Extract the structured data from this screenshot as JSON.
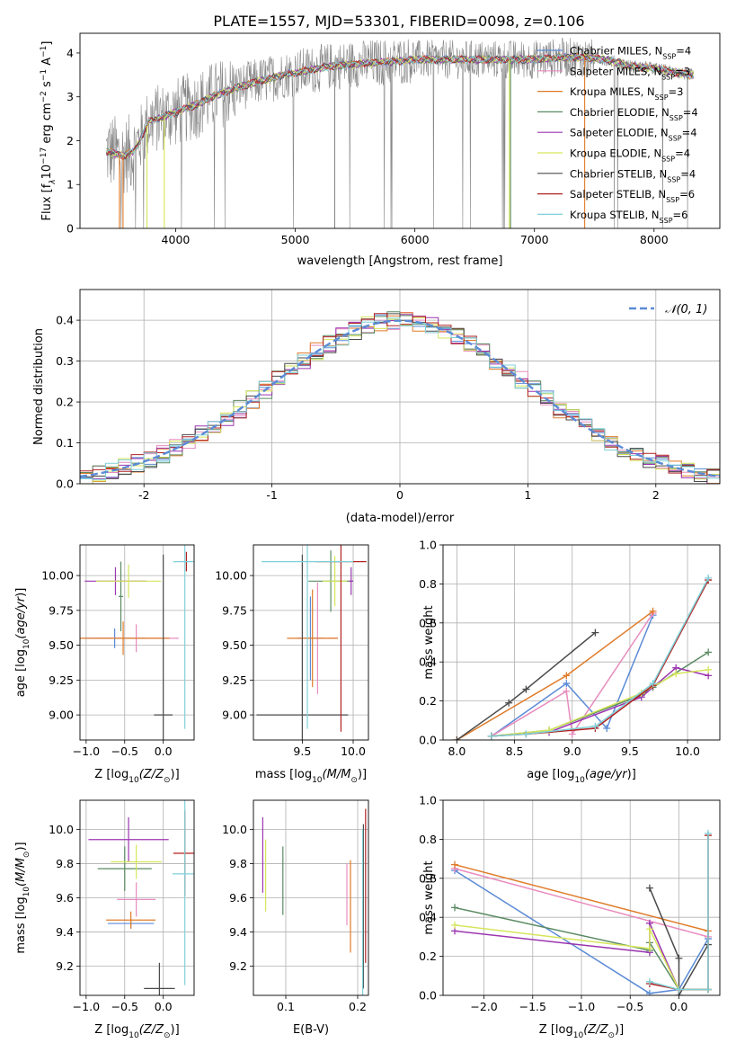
{
  "figure": {
    "title": "PLATE=1557, MJD=53301, FIBERID=0098, z=0.106"
  },
  "colors": {
    "chabrier_miles": "#5b8bd6",
    "salpeter_miles": "#e88cbe",
    "kroupa_miles": "#e07b28",
    "chabrier_elodie": "#5a8a62",
    "salpeter_elodie": "#9b35b0",
    "kroupa_elodie": "#d6e65a",
    "chabrier_stelib": "#4a4a4a",
    "salpeter_stelib": "#b22222",
    "kroupa_stelib": "#7fd1d8",
    "spectrum": "#888888",
    "gaussian": "#5b8bd6",
    "grid": "#b0b0b0"
  },
  "chart_data": [
    {
      "id": "spectrum",
      "type": "line",
      "title": "PLATE=1557, MJD=53301, FIBERID=0098, z=0.106",
      "xlabel": "wavelength [Angstrom, rest frame]",
      "ylabel_parts": [
        "Flux [f",
        "λ",
        "10",
        "−17",
        " erg cm",
        "−2",
        " s",
        "−1",
        " A",
        "−1",
        "]"
      ],
      "xlim": [
        3200,
        8550
      ],
      "ylim": [
        0,
        4.45
      ],
      "xticks": [
        4000,
        5000,
        6000,
        7000,
        8000
      ],
      "yticks": [
        0,
        1,
        2,
        3,
        4
      ],
      "grid": false,
      "legend_placement": "right",
      "legend": [
        {
          "base": "Chabrier MILES, N",
          "sub": "SSP",
          "tail": "=4",
          "color_key": "chabrier_miles"
        },
        {
          "base": "Salpeter MILES, N",
          "sub": "SSP",
          "tail": "=3",
          "color_key": "salpeter_miles"
        },
        {
          "base": "Kroupa MILES, N",
          "sub": "SSP",
          "tail": "=3",
          "color_key": "kroupa_miles"
        },
        {
          "base": "Chabrier ELODIE, N",
          "sub": "SSP",
          "tail": "=4",
          "color_key": "chabrier_elodie"
        },
        {
          "base": "Salpeter ELODIE, N",
          "sub": "SSP",
          "tail": "=4",
          "color_key": "salpeter_elodie"
        },
        {
          "base": "Kroupa ELODIE, N",
          "sub": "SSP",
          "tail": "=4",
          "color_key": "kroupa_elodie"
        },
        {
          "base": "Chabrier STELIB, N",
          "sub": "SSP",
          "tail": "=4",
          "color_key": "chabrier_stelib"
        },
        {
          "base": "Salpeter STELIB, N",
          "sub": "SSP",
          "tail": "=6",
          "color_key": "salpeter_stelib"
        },
        {
          "base": "Kroupa STELIB, N",
          "sub": "SSP",
          "tail": "=6",
          "color_key": "kroupa_stelib"
        }
      ],
      "continuum_x": [
        3450,
        3550,
        3650,
        3700,
        3780,
        3900,
        4000,
        4100,
        4200,
        4300,
        4400,
        4500,
        4700,
        4900,
        5100,
        5300,
        5500,
        5800,
        6000,
        6200,
        6400,
        6600,
        6800,
        7000,
        7200,
        7400,
        7600,
        7800,
        8000,
        8200,
        8300
      ],
      "continuum_y": [
        1.75,
        1.65,
        1.75,
        2.0,
        2.45,
        2.55,
        2.65,
        2.75,
        2.85,
        3.0,
        3.1,
        3.2,
        3.35,
        3.5,
        3.6,
        3.7,
        3.75,
        3.8,
        3.85,
        3.85,
        3.85,
        3.85,
        3.85,
        3.85,
        3.9,
        3.9,
        3.85,
        3.7,
        3.65,
        3.55,
        3.5
      ],
      "dropout_lines": [
        {
          "x": 3530,
          "color_key": "kroupa_miles"
        },
        {
          "x": 3560,
          "color_key": "kroupa_miles"
        },
        {
          "x": 3905,
          "color_key": "kroupa_elodie"
        },
        {
          "x": 3760,
          "color_key": "kroupa_elodie"
        },
        {
          "x": 5330,
          "color_key": "spectrum"
        },
        {
          "x": 6790,
          "color_key": "kroupa_elodie"
        },
        {
          "x": 6800,
          "color_key": "chabrier_elodie"
        },
        {
          "x": 7420,
          "color_key": "kroupa_miles"
        }
      ]
    },
    {
      "id": "residuals",
      "type": "line",
      "xlabel": "(data-model)/error",
      "ylabel": "Normed distribution",
      "xlim": [
        -2.5,
        2.5
      ],
      "ylim": [
        0,
        0.475
      ],
      "xticks": [
        -2,
        -1,
        0,
        1,
        2
      ],
      "yticks": [
        0.0,
        0.1,
        0.2,
        0.3,
        0.4
      ],
      "ytick_labels": [
        "0.0",
        "0.1",
        "0.2",
        "0.3",
        "0.4"
      ],
      "grid": true,
      "legend_placement": "top-right",
      "legend": [
        {
          "label": "𝒩(0, 1)",
          "color_key": "gaussian",
          "dashed": true
        }
      ],
      "bin_width": 0.1,
      "histograms_note": "nine step histograms, one per model, scattered about the unit normal"
    },
    {
      "id": "age_vs_Z",
      "type": "scatter",
      "xlabel": "Z [log10(Z/Z⊙)]",
      "ylabel": "age  [log10(age/yr)]",
      "xlim": [
        -1.08,
        0.4
      ],
      "ylim": [
        8.82,
        10.22
      ],
      "xticks": [
        -1.0,
        -0.5,
        0.0
      ],
      "xtick_labels": [
        "−1.0",
        "−0.5",
        "0.0"
      ],
      "yticks": [
        9.0,
        9.25,
        9.5,
        9.75,
        10.0
      ],
      "ytick_labels": [
        "9.00",
        "9.25",
        "9.50",
        "9.75",
        "10.00"
      ],
      "grid": true,
      "points": [
        {
          "x": -0.63,
          "y": 9.55,
          "xerr": 0.4,
          "yerr": 0.07,
          "color_key": "chabrier_miles"
        },
        {
          "x": -0.35,
          "y": 9.55,
          "xerr": 0.55,
          "yerr": 0.1,
          "color_key": "salpeter_miles"
        },
        {
          "x": -0.52,
          "y": 9.55,
          "xerr": 0.6,
          "yerr": 0.12,
          "color_key": "kroupa_miles"
        },
        {
          "x": -0.55,
          "y": 9.85,
          "xerr": 0.03,
          "yerr": 0.25,
          "color_key": "chabrier_elodie"
        },
        {
          "x": -0.62,
          "y": 9.96,
          "xerr": 0.4,
          "yerr": 0.1,
          "color_key": "salpeter_elodie"
        },
        {
          "x": -0.45,
          "y": 9.96,
          "xerr": 0.42,
          "yerr": 0.12,
          "color_key": "kroupa_elodie"
        },
        {
          "x": 0.0,
          "y": 9.0,
          "xerr": 0.12,
          "yerr": 1.15,
          "color_key": "chabrier_stelib"
        },
        {
          "x": 0.3,
          "y": 10.1,
          "xerr": 0.02,
          "yerr": 0.07,
          "color_key": "salpeter_stelib"
        },
        {
          "x": 0.28,
          "y": 10.1,
          "xerr": 0.15,
          "yerr": 1.2,
          "color_key": "kroupa_stelib"
        }
      ]
    },
    {
      "id": "age_vs_mass",
      "type": "scatter",
      "xlabel": "mass [log10(M/M⊙)]",
      "ylabel": "",
      "xlim": [
        9.02,
        10.15
      ],
      "ylim": [
        8.82,
        10.22
      ],
      "xticks": [
        9.5,
        10.0
      ],
      "xtick_labels": [
        "9.5",
        "10.0"
      ],
      "yticks": [
        9.0,
        9.25,
        9.5,
        9.75,
        10.0
      ],
      "ytick_labels": [
        "9.00",
        "9.25",
        "9.50",
        "9.75",
        "10.00"
      ],
      "grid": true,
      "points": [
        {
          "x": 9.58,
          "y": 9.55,
          "xerr": 0.13,
          "yerr": 0.3,
          "color_key": "chabrier_miles"
        },
        {
          "x": 9.65,
          "y": 9.55,
          "xerr": 0.2,
          "yerr": 0.4,
          "color_key": "salpeter_miles"
        },
        {
          "x": 9.6,
          "y": 9.55,
          "xerr": 0.25,
          "yerr": 0.35,
          "color_key": "kroupa_miles"
        },
        {
          "x": 9.78,
          "y": 9.96,
          "xerr": 0.22,
          "yerr": 0.22,
          "color_key": "chabrier_elodie"
        },
        {
          "x": 9.98,
          "y": 9.96,
          "xerr": 0.02,
          "yerr": 0.1,
          "color_key": "salpeter_elodie"
        },
        {
          "x": 9.82,
          "y": 9.96,
          "xerr": 0.12,
          "yerr": 0.18,
          "color_key": "kroupa_elodie"
        },
        {
          "x": 9.5,
          "y": 9.0,
          "xerr": 0.45,
          "yerr": 1.15,
          "color_key": "chabrier_stelib"
        },
        {
          "x": 9.88,
          "y": 10.1,
          "xerr": 0.25,
          "yerr": 1.22,
          "color_key": "salpeter_stelib"
        },
        {
          "x": 9.55,
          "y": 10.1,
          "xerr": 0.45,
          "yerr": 1.2,
          "color_key": "kroupa_stelib"
        }
      ]
    },
    {
      "id": "massweight_vs_age",
      "type": "line",
      "xlabel": "age  [log10(age/yr)]",
      "ylabel": "mass weight",
      "xlim": [
        7.88,
        10.28
      ],
      "ylim": [
        0,
        1.0
      ],
      "xticks": [
        8.0,
        8.5,
        9.0,
        9.5,
        10.0
      ],
      "xtick_labels": [
        "8.0",
        "8.5",
        "9.0",
        "9.5",
        "10.0"
      ],
      "yticks": [
        0.0,
        0.2,
        0.4,
        0.6,
        0.8,
        1.0
      ],
      "ytick_labels": [
        "0.0",
        "0.2",
        "0.4",
        "0.6",
        "0.8",
        "1.0"
      ],
      "grid": true,
      "series": [
        {
          "color_key": "chabrier_miles",
          "x": [
            8.3,
            8.95,
            9.3,
            9.7
          ],
          "y": [
            0.02,
            0.29,
            0.06,
            0.64
          ]
        },
        {
          "color_key": "salpeter_miles",
          "x": [
            8.3,
            8.95,
            9.0,
            9.7
          ],
          "y": [
            0.02,
            0.25,
            0.03,
            0.65
          ]
        },
        {
          "color_key": "kroupa_miles",
          "x": [
            8.0,
            8.95,
            9.7
          ],
          "y": [
            0.0,
            0.33,
            0.66
          ]
        },
        {
          "color_key": "chabrier_elodie",
          "x": [
            8.3,
            8.8,
            9.6,
            9.7,
            10.18
          ],
          "y": [
            0.02,
            0.05,
            0.23,
            0.27,
            0.45
          ]
        },
        {
          "color_key": "salpeter_elodie",
          "x": [
            8.3,
            8.8,
            9.6,
            9.9,
            10.18
          ],
          "y": [
            0.02,
            0.04,
            0.22,
            0.37,
            0.33
          ]
        },
        {
          "color_key": "kroupa_elodie",
          "x": [
            8.3,
            8.8,
            9.6,
            9.9,
            10.18
          ],
          "y": [
            0.02,
            0.05,
            0.24,
            0.34,
            0.36
          ]
        },
        {
          "color_key": "chabrier_stelib",
          "x": [
            8.0,
            8.45,
            8.6,
            9.2
          ],
          "y": [
            0.0,
            0.19,
            0.26,
            0.55
          ]
        },
        {
          "color_key": "salpeter_stelib",
          "x": [
            8.3,
            8.6,
            9.2,
            9.7,
            10.18
          ],
          "y": [
            0.02,
            0.03,
            0.06,
            0.28,
            0.82
          ]
        },
        {
          "color_key": "kroupa_stelib",
          "x": [
            8.3,
            8.6,
            9.2,
            9.7,
            10.18
          ],
          "y": [
            0.02,
            0.03,
            0.07,
            0.29,
            0.83
          ]
        }
      ]
    },
    {
      "id": "mass_vs_Z",
      "type": "scatter",
      "xlabel": "Z [log10(Z/Z⊙)]",
      "ylabel": "mass [log10(M/M⊙)]",
      "xlim": [
        -1.08,
        0.4
      ],
      "ylim": [
        9.03,
        10.17
      ],
      "xticks": [
        -1.0,
        -0.5,
        0.0
      ],
      "xtick_labels": [
        "−1.0",
        "−0.5",
        "0.0"
      ],
      "yticks": [
        9.2,
        9.4,
        9.6,
        9.8,
        10.0
      ],
      "ytick_labels": [
        "9.2",
        "9.4",
        "9.6",
        "9.8",
        "10.0"
      ],
      "grid": true,
      "points": [
        {
          "x": -0.42,
          "y": 9.45,
          "xerr": 0.3,
          "yerr": 0.03,
          "color_key": "chabrier_miles"
        },
        {
          "x": -0.35,
          "y": 9.59,
          "xerr": 0.25,
          "yerr": 0.1,
          "color_key": "salpeter_miles"
        },
        {
          "x": -0.42,
          "y": 9.47,
          "xerr": 0.32,
          "yerr": 0.05,
          "color_key": "kroupa_miles"
        },
        {
          "x": -0.5,
          "y": 9.77,
          "xerr": 0.35,
          "yerr": 0.13,
          "color_key": "chabrier_elodie"
        },
        {
          "x": -0.45,
          "y": 9.94,
          "xerr": 0.52,
          "yerr": 0.13,
          "color_key": "salpeter_elodie"
        },
        {
          "x": -0.35,
          "y": 9.81,
          "xerr": 0.33,
          "yerr": 0.1,
          "color_key": "kroupa_elodie"
        },
        {
          "x": -0.05,
          "y": 9.07,
          "xerr": 0.2,
          "yerr": 0.15,
          "color_key": "chabrier_stelib"
        },
        {
          "x": 0.28,
          "y": 9.86,
          "xerr": 0.15,
          "yerr": 0.25,
          "color_key": "salpeter_stelib"
        },
        {
          "x": 0.28,
          "y": 9.74,
          "xerr": 0.16,
          "yerr": 0.65,
          "color_key": "kroupa_stelib"
        }
      ]
    },
    {
      "id": "mass_vs_ebv",
      "type": "scatter",
      "xlabel": "E(B-V)",
      "ylabel": "",
      "xlim": [
        0.055,
        0.215
      ],
      "ylim": [
        9.03,
        10.17
      ],
      "xticks": [
        0.1,
        0.2
      ],
      "xtick_labels": [
        "0.1",
        "0.2"
      ],
      "yticks": [
        9.2,
        9.4,
        9.6,
        9.8,
        10.0
      ],
      "ytick_labels": [
        "9.2",
        "9.4",
        "9.6",
        "9.8",
        "10.0"
      ],
      "grid": true,
      "points": [
        {
          "x": 0.185,
          "y": 9.62,
          "xerr": 0.0,
          "yerr": 0.18,
          "color_key": "salpeter_miles"
        },
        {
          "x": 0.19,
          "y": 9.55,
          "xerr": 0.0,
          "yerr": 0.27,
          "color_key": "kroupa_miles"
        },
        {
          "x": 0.096,
          "y": 9.7,
          "xerr": 0.0,
          "yerr": 0.2,
          "color_key": "chabrier_elodie"
        },
        {
          "x": 0.068,
          "y": 9.85,
          "xerr": 0.0,
          "yerr": 0.22,
          "color_key": "salpeter_elodie"
        },
        {
          "x": 0.072,
          "y": 9.73,
          "xerr": 0.0,
          "yerr": 0.21,
          "color_key": "kroupa_elodie"
        },
        {
          "x": 0.208,
          "y": 9.55,
          "xerr": 0.0,
          "yerr": 0.48,
          "color_key": "chabrier_stelib"
        },
        {
          "x": 0.211,
          "y": 9.67,
          "xerr": 0.0,
          "yerr": 0.45,
          "color_key": "salpeter_stelib"
        },
        {
          "x": 0.207,
          "y": 9.5,
          "xerr": 0.0,
          "yerr": 0.5,
          "color_key": "kroupa_stelib"
        }
      ]
    },
    {
      "id": "massweight_vs_Z",
      "type": "line",
      "xlabel": "Z [log10(Z/Z⊙)]",
      "ylabel": "mass weight",
      "xlim": [
        -2.42,
        0.42
      ],
      "ylim": [
        0,
        1.0
      ],
      "xticks": [
        -2.0,
        -1.5,
        -1.0,
        -0.5,
        0.0
      ],
      "xtick_labels": [
        "−2.0",
        "−1.5",
        "−1.0",
        "−0.5",
        "0.0"
      ],
      "yticks": [
        0.0,
        0.2,
        0.4,
        0.6,
        0.8,
        1.0
      ],
      "ytick_labels": [
        "0.0",
        "0.2",
        "0.4",
        "0.6",
        "0.8",
        "1.0"
      ],
      "grid": true,
      "series": [
        {
          "color_key": "chabrier_miles",
          "x": [
            -2.3,
            -0.3,
            0.0,
            0.3
          ],
          "y": [
            0.64,
            0.01,
            0.03,
            0.29
          ]
        },
        {
          "color_key": "salpeter_miles",
          "x": [
            -2.3,
            0.3
          ],
          "y": [
            0.65,
            0.3
          ]
        },
        {
          "color_key": "kroupa_miles",
          "x": [
            -2.3,
            0.3
          ],
          "y": [
            0.67,
            0.33
          ]
        },
        {
          "color_key": "chabrier_elodie",
          "x": [
            -2.3,
            -0.3,
            -0.3,
            0.0,
            0.3
          ],
          "y": [
            0.45,
            0.23,
            0.27,
            0.03,
            0.03
          ]
        },
        {
          "color_key": "salpeter_elodie",
          "x": [
            -2.3,
            -0.3,
            -0.3,
            0.0
          ],
          "y": [
            0.33,
            0.22,
            0.37,
            0.03
          ]
        },
        {
          "color_key": "kroupa_elodie",
          "x": [
            -2.3,
            -0.3,
            -0.3,
            0.0,
            0.3
          ],
          "y": [
            0.36,
            0.24,
            0.34,
            0.03,
            0.03
          ]
        },
        {
          "color_key": "chabrier_stelib",
          "x": [
            -0.3,
            0.0,
            0.0,
            0.3
          ],
          "y": [
            0.55,
            0.19,
            0.0,
            0.26
          ]
        },
        {
          "color_key": "salpeter_stelib",
          "x": [
            -0.3,
            0.0,
            0.3,
            0.3
          ],
          "y": [
            0.06,
            0.03,
            0.03,
            0.82
          ]
        },
        {
          "color_key": "kroupa_stelib",
          "x": [
            -0.3,
            0.0,
            0.3,
            0.3
          ],
          "y": [
            0.07,
            0.03,
            0.03,
            0.83
          ]
        }
      ]
    }
  ]
}
